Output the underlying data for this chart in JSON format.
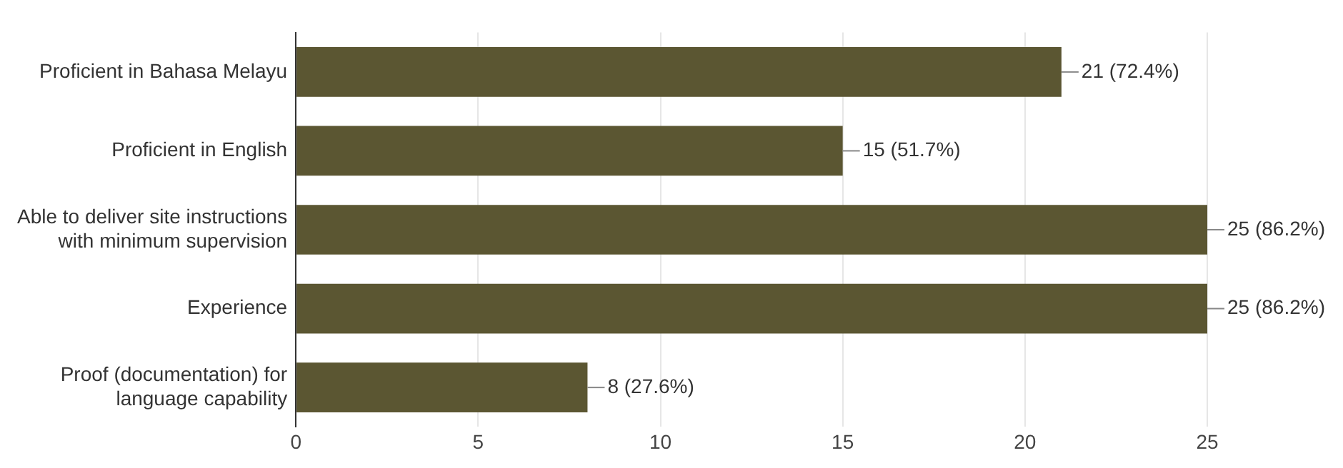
{
  "chart_data": {
    "type": "bar",
    "orientation": "horizontal",
    "categories": [
      "Proficient in Bahasa Melayu",
      "Proficient in English",
      "Able to deliver site instructions with minimum supervision",
      "Experience",
      "Proof (documentation) for language capability"
    ],
    "values": [
      21,
      15,
      25,
      25,
      8
    ],
    "value_labels": [
      "21 (72.4%)",
      "15 (51.7%)",
      "25 (86.2%)",
      "25 (86.2%)",
      "8 (27.6%)"
    ],
    "color": "#5b5632",
    "xlim": [
      0,
      25
    ],
    "xticks": [
      0,
      5,
      10,
      15,
      20,
      25
    ],
    "grid": "x",
    "legend": false
  }
}
